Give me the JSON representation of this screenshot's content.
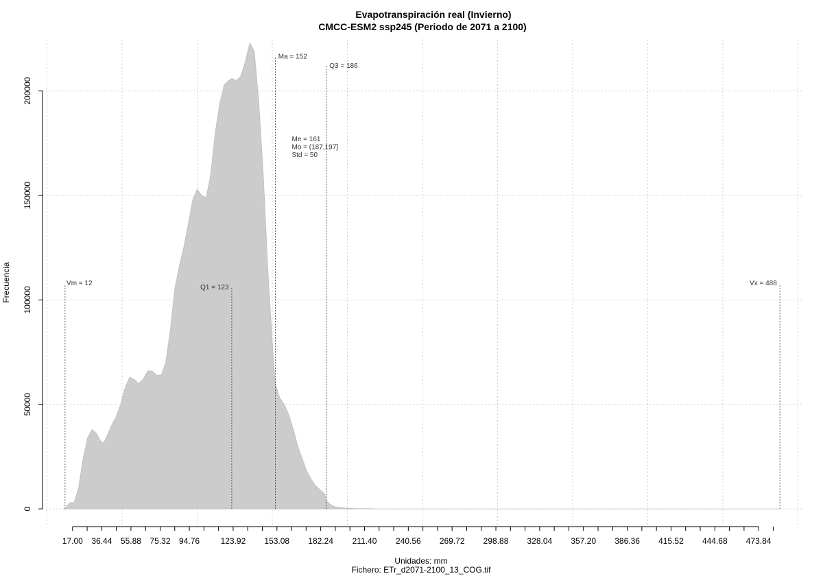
{
  "chart_data": {
    "type": "area",
    "title": "Evapotranspiración real (Invierno)",
    "subtitle": "CMCC-ESM2 ssp245 (Periodo de 2071 a 2100)",
    "xlabel": "Unidades: mm",
    "ylabel": "Frecuencia",
    "footer": "Fichero: ETr_d2071-2100_13_COG.tif",
    "xlim": [
      -3,
      503
    ],
    "ylim": [
      -8500,
      224500
    ],
    "grid": true,
    "x_ticks": [
      17.0,
      36.44,
      55.88,
      75.32,
      94.76,
      123.92,
      153.08,
      182.24,
      211.4,
      240.56,
      269.72,
      298.88,
      328.04,
      357.2,
      386.36,
      415.52,
      444.68,
      473.84
    ],
    "x_tick_labels": [
      "17.00",
      "36.44",
      "55.88",
      "75.32",
      "94.76",
      "123.92",
      "153.08",
      "182.24",
      "211.40",
      "240.56",
      "269.72",
      "298.88",
      "328.04",
      "357.20",
      "386.36",
      "415.52",
      "444.68",
      "473.84"
    ],
    "x_minor_ticks": [
      26.72,
      46.16,
      65.6,
      85.04,
      104.48,
      114.2,
      133.64,
      143.36,
      162.8,
      172.52,
      191.96,
      201.68,
      221.12,
      230.84,
      250.28,
      260.0,
      279.44,
      289.16,
      308.6,
      318.32,
      337.76,
      347.48,
      366.92,
      376.64,
      396.08,
      405.8,
      425.24,
      434.96,
      454.4,
      464.12,
      483.56
    ],
    "y_ticks": [
      0,
      50000,
      100000,
      150000,
      200000
    ],
    "y_tick_labels": [
      "0",
      "50000",
      "100000",
      "150000",
      "200000"
    ],
    "x_grid": [
      0,
      50,
      100,
      150,
      200,
      250,
      300,
      350,
      400,
      450,
      500
    ],
    "y_grid": [
      0,
      50000,
      100000,
      150000,
      200000
    ],
    "fill_color": "#cccccc",
    "x": [
      12,
      15,
      18,
      21,
      24,
      27,
      30,
      33,
      36,
      38,
      40,
      43,
      46,
      49,
      52,
      55,
      58,
      61,
      64,
      67,
      70,
      73,
      76,
      79,
      82,
      85,
      88,
      91,
      94,
      97,
      100,
      103,
      106,
      109,
      112,
      115,
      118,
      121,
      123,
      126,
      129,
      132,
      135,
      138,
      141,
      144,
      147,
      150,
      152,
      155,
      158,
      161,
      164,
      167,
      170,
      173,
      176,
      179,
      182,
      185,
      186,
      188,
      190,
      192,
      195,
      198,
      201,
      204,
      207,
      210,
      213,
      216,
      219,
      222,
      225,
      230,
      235,
      240,
      245,
      250,
      255,
      260,
      265,
      270,
      280,
      290,
      300,
      310,
      320,
      330,
      350,
      380,
      420,
      460,
      488
    ],
    "y": [
      0,
      3000,
      3000,
      10000,
      24000,
      34000,
      38000,
      36000,
      32000,
      32000,
      35000,
      40000,
      44000,
      50000,
      58000,
      63000,
      62000,
      60000,
      62000,
      66000,
      66000,
      64000,
      64000,
      70000,
      85000,
      105000,
      116000,
      125000,
      136000,
      148000,
      153000,
      150000,
      149000,
      160000,
      180000,
      194000,
      203000,
      205000,
      206000,
      205000,
      207000,
      214000,
      223000,
      219000,
      195000,
      160000,
      115000,
      80000,
      60000,
      53000,
      50000,
      45000,
      38000,
      30000,
      24000,
      18000,
      14000,
      11000,
      9000,
      7000,
      4000,
      2500,
      1500,
      1000,
      700,
      400,
      300,
      200,
      100,
      100,
      100,
      100,
      0,
      0,
      0,
      0,
      0,
      0,
      0,
      0,
      0,
      0,
      0,
      0,
      0,
      0,
      0,
      0,
      0,
      0,
      0,
      0,
      0,
      0,
      0
    ],
    "annotations": [
      {
        "x": 12,
        "line_top": 107000,
        "text": "Vm = 12",
        "text_x": 13,
        "text_y": 107000,
        "anchor": "start"
      },
      {
        "x": 123,
        "line_top": 106000,
        "text": "Q1 = 123",
        "text_x": 121,
        "text_y": 105000,
        "anchor": "end"
      },
      {
        "x": 152,
        "line_top": 216000,
        "text": "Ma = 152",
        "text_x": 154,
        "text_y": 215500,
        "anchor": "start"
      },
      {
        "x": 186,
        "line_top": 212000,
        "text": "Q3 = 186",
        "text_x": 188,
        "text_y": 211000,
        "anchor": "start"
      },
      {
        "x": 488,
        "line_top": 107000,
        "text": "Vx = 488",
        "text_x": 486,
        "text_y": 107000,
        "anchor": "end"
      }
    ],
    "stats_text": [
      "Me = 161",
      "Mo = (187,197]",
      "Std = 50"
    ],
    "stats_pos": {
      "x": 163,
      "y": [
        176000,
        172200,
        168400
      ]
    }
  }
}
